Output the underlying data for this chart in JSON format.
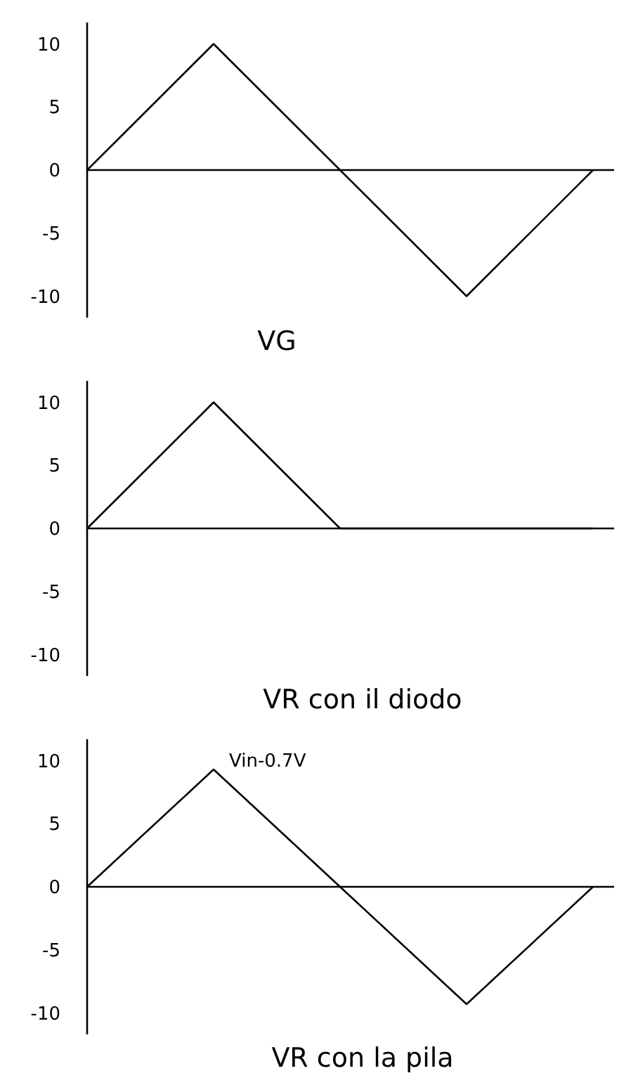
{
  "chart_data": [
    {
      "type": "line",
      "categories": [
        null,
        null,
        null,
        null,
        null
      ],
      "values": [
        0,
        10,
        0,
        -10,
        0
      ],
      "color": "#000000",
      "ylim": [
        -11.7,
        11.7
      ],
      "yticks": [
        -10,
        -5,
        0,
        5,
        10
      ],
      "xlabel": "VG"
    },
    {
      "type": "line",
      "categories": [
        null,
        null,
        null,
        null,
        null
      ],
      "values": [
        0,
        10,
        0,
        0,
        0
      ],
      "color": "#000000",
      "ylim": [
        -11.7,
        11.7
      ],
      "yticks": [
        -10,
        -5,
        0,
        5,
        10
      ],
      "xlabel": "VR con il diodo"
    },
    {
      "type": "line",
      "categories": [
        null,
        null,
        null,
        null,
        null
      ],
      "values": [
        0,
        9.3,
        0,
        -9.3,
        0
      ],
      "color": "#000000",
      "ylim": [
        -11.7,
        11.7
      ],
      "yticks": [
        -10,
        -5,
        0,
        5,
        10
      ],
      "xlabel": "VR con la pila",
      "annotations": [
        "Vin-0.7V"
      ]
    }
  ]
}
